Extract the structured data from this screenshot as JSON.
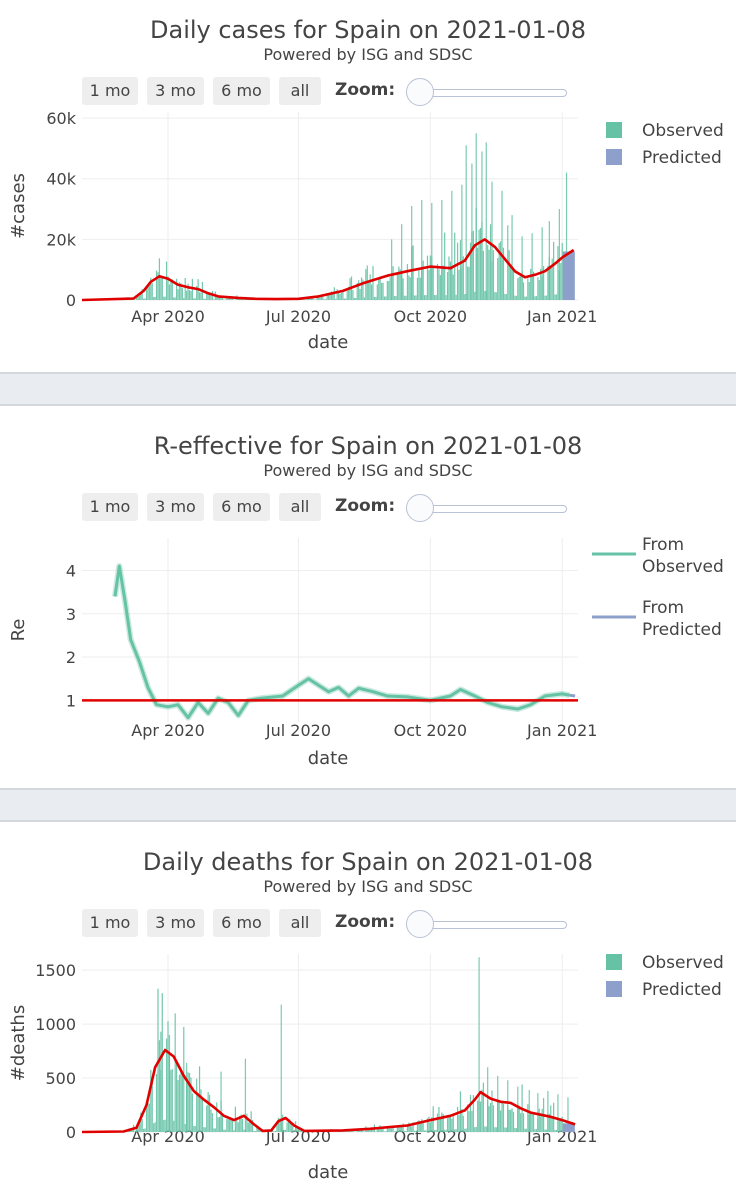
{
  "colors": {
    "observed": "#66c2a5",
    "predicted": "#8da0cb",
    "fit": "#e00000"
  },
  "range_buttons": [
    "1 mo",
    "3 mo",
    "6 mo",
    "all"
  ],
  "zoom_label": "Zoom:",
  "panels": [
    {
      "title": "Daily cases for Spain on 2021-01-08",
      "subtitle": "Powered by ISG and SDSC",
      "chart_data": {
        "type": "bar",
        "xlabel": "date",
        "ylabel": "#cases",
        "xlim": [
          "2020-02-01",
          "2021-01-12"
        ],
        "ylim": [
          0,
          62000
        ],
        "yticks": [
          0,
          20000,
          40000,
          60000
        ],
        "ytick_labels": [
          "0",
          "20k",
          "40k",
          "60k"
        ],
        "xticks": [
          "2020-04-01",
          "2020-07-01",
          "2020-10-01",
          "2021-01-01"
        ],
        "xtick_labels": [
          "Apr 2020",
          "Jul 2020",
          "Oct 2020",
          "Jan 2021"
        ],
        "legend": [
          "Observed",
          "Predicted"
        ],
        "legend_position": "right",
        "spikes": [
          [
            "2020-09-04",
            20000
          ],
          [
            "2020-09-11",
            25000
          ],
          [
            "2020-09-18",
            31000
          ],
          [
            "2020-09-25",
            33000
          ],
          [
            "2020-10-02",
            32000
          ],
          [
            "2020-10-09",
            33000
          ],
          [
            "2020-10-16",
            36000
          ],
          [
            "2020-10-23",
            38000
          ],
          [
            "2020-10-26",
            51000
          ],
          [
            "2020-10-30",
            45000
          ],
          [
            "2020-11-02",
            55000
          ],
          [
            "2020-11-06",
            49000
          ],
          [
            "2020-11-09",
            52000
          ],
          [
            "2020-11-13",
            39000
          ],
          [
            "2020-11-20",
            36000
          ],
          [
            "2020-11-27",
            28000
          ],
          [
            "2020-12-04",
            21000
          ],
          [
            "2020-12-11",
            22000
          ],
          [
            "2020-12-18",
            24000
          ],
          [
            "2020-12-23",
            26000
          ],
          [
            "2020-12-30",
            30000
          ],
          [
            "2021-01-04",
            42000
          ]
        ],
        "observed_curve": [
          [
            "2020-02-01",
            0
          ],
          [
            "2020-03-08",
            500
          ],
          [
            "2020-03-15",
            3000
          ],
          [
            "2020-03-20",
            6000
          ],
          [
            "2020-03-26",
            7800
          ],
          [
            "2020-04-01",
            7000
          ],
          [
            "2020-04-08",
            5000
          ],
          [
            "2020-04-15",
            4200
          ],
          [
            "2020-04-22",
            3600
          ],
          [
            "2020-04-29",
            2200
          ],
          [
            "2020-05-06",
            1200
          ],
          [
            "2020-05-20",
            700
          ],
          [
            "2020-06-01",
            400
          ],
          [
            "2020-06-15",
            300
          ],
          [
            "2020-07-01",
            400
          ],
          [
            "2020-07-15",
            1200
          ],
          [
            "2020-08-01",
            3000
          ],
          [
            "2020-08-15",
            5500
          ],
          [
            "2020-09-01",
            8000
          ],
          [
            "2020-09-15",
            9500
          ],
          [
            "2020-10-01",
            11000
          ],
          [
            "2020-10-15",
            10500
          ],
          [
            "2020-10-25",
            13000
          ],
          [
            "2020-11-01",
            18000
          ],
          [
            "2020-11-08",
            20000
          ],
          [
            "2020-11-15",
            17500
          ],
          [
            "2020-11-22",
            13500
          ],
          [
            "2020-11-29",
            9500
          ],
          [
            "2020-12-06",
            7500
          ],
          [
            "2020-12-13",
            8300
          ],
          [
            "2020-12-20",
            9500
          ],
          [
            "2020-12-27",
            12000
          ],
          [
            "2021-01-01",
            14000
          ]
        ],
        "predicted_curve": [
          [
            "2021-01-01",
            14000
          ],
          [
            "2021-01-09",
            16500
          ]
        ],
        "predicted_bars": {
          "from": "2021-01-02",
          "to": "2021-01-09",
          "value": 16000
        }
      }
    },
    {
      "title": "R-effective for Spain on 2021-01-08",
      "subtitle": "Powered by ISG and SDSC",
      "chart_data": {
        "type": "line",
        "xlabel": "date",
        "ylabel": "Re",
        "xlim": [
          "2020-02-01",
          "2021-01-12"
        ],
        "ylim": [
          0.5,
          4.75
        ],
        "yticks": [
          1,
          2,
          3,
          4
        ],
        "ytick_labels": [
          "1",
          "2",
          "3",
          "4"
        ],
        "xticks": [
          "2020-04-01",
          "2020-07-01",
          "2020-10-01",
          "2021-01-01"
        ],
        "xtick_labels": [
          "Apr 2020",
          "Jul 2020",
          "Oct 2020",
          "Jan 2021"
        ],
        "reference_line": 1,
        "legend": [
          "From Observed",
          "From Predicted"
        ],
        "legend_position": "right",
        "series": [
          {
            "name": "From Observed",
            "points": [
              [
                "2020-02-24",
                3.4
              ],
              [
                "2020-02-27",
                4.1
              ],
              [
                "2020-03-02",
                3.3
              ],
              [
                "2020-03-06",
                2.4
              ],
              [
                "2020-03-12",
                1.9
              ],
              [
                "2020-03-18",
                1.3
              ],
              [
                "2020-03-24",
                0.9
              ],
              [
                "2020-04-01",
                0.85
              ],
              [
                "2020-04-08",
                0.9
              ],
              [
                "2020-04-15",
                0.6
              ],
              [
                "2020-04-22",
                0.95
              ],
              [
                "2020-04-29",
                0.7
              ],
              [
                "2020-05-06",
                1.05
              ],
              [
                "2020-05-13",
                0.95
              ],
              [
                "2020-05-20",
                0.65
              ],
              [
                "2020-05-27",
                1.0
              ],
              [
                "2020-06-05",
                1.05
              ],
              [
                "2020-06-20",
                1.1
              ],
              [
                "2020-07-01",
                1.35
              ],
              [
                "2020-07-08",
                1.5
              ],
              [
                "2020-07-15",
                1.35
              ],
              [
                "2020-07-22",
                1.2
              ],
              [
                "2020-07-29",
                1.3
              ],
              [
                "2020-08-05",
                1.1
              ],
              [
                "2020-08-12",
                1.28
              ],
              [
                "2020-08-22",
                1.2
              ],
              [
                "2020-09-01",
                1.1
              ],
              [
                "2020-09-15",
                1.08
              ],
              [
                "2020-10-01",
                1.0
              ],
              [
                "2020-10-15",
                1.1
              ],
              [
                "2020-10-22",
                1.25
              ],
              [
                "2020-11-01",
                1.1
              ],
              [
                "2020-11-10",
                0.95
              ],
              [
                "2020-11-20",
                0.85
              ],
              [
                "2020-12-01",
                0.8
              ],
              [
                "2020-12-10",
                0.9
              ],
              [
                "2020-12-20",
                1.1
              ],
              [
                "2021-01-01",
                1.15
              ],
              [
                "2021-01-06",
                1.12
              ]
            ]
          },
          {
            "name": "From Predicted",
            "points": [
              [
                "2021-01-06",
                1.12
              ],
              [
                "2021-01-10",
                1.1
              ]
            ]
          }
        ]
      }
    },
    {
      "title": "Daily deaths for Spain on 2021-01-08",
      "subtitle": "Powered by ISG and SDSC",
      "chart_data": {
        "type": "bar",
        "xlabel": "date",
        "ylabel": "#deaths",
        "xlim": [
          "2020-02-01",
          "2021-01-12"
        ],
        "ylim": [
          0,
          1650
        ],
        "yticks": [
          0,
          500,
          1000,
          1500
        ],
        "ytick_labels": [
          "0",
          "500",
          "1000",
          "1500"
        ],
        "xticks": [
          "2020-04-01",
          "2020-07-01",
          "2020-10-01",
          "2021-01-01"
        ],
        "xtick_labels": [
          "Apr 2020",
          "Jul 2020",
          "Oct 2020",
          "Jan 2021"
        ],
        "legend": [
          "Observed",
          "Predicted"
        ],
        "legend_position": "right",
        "spikes": [
          [
            "2020-03-27",
            930
          ],
          [
            "2020-04-02",
            900
          ],
          [
            "2020-04-14",
            640
          ],
          [
            "2020-05-08",
            560
          ],
          [
            "2020-05-25",
            680
          ],
          [
            "2020-06-19",
            1180
          ],
          [
            "2020-11-04",
            1620
          ],
          [
            "2020-11-10",
            600
          ],
          [
            "2020-11-17",
            520
          ],
          [
            "2020-11-24",
            480
          ],
          [
            "2020-12-01",
            420
          ],
          [
            "2020-12-09",
            390
          ],
          [
            "2020-12-15",
            360
          ],
          [
            "2020-12-22",
            380
          ],
          [
            "2020-12-29",
            350
          ],
          [
            "2021-01-05",
            320
          ]
        ],
        "observed_curve": [
          [
            "2020-02-01",
            0
          ],
          [
            "2020-03-01",
            5
          ],
          [
            "2020-03-10",
            40
          ],
          [
            "2020-03-17",
            250
          ],
          [
            "2020-03-23",
            600
          ],
          [
            "2020-03-30",
            760
          ],
          [
            "2020-04-05",
            700
          ],
          [
            "2020-04-12",
            520
          ],
          [
            "2020-04-19",
            380
          ],
          [
            "2020-04-26",
            300
          ],
          [
            "2020-05-03",
            230
          ],
          [
            "2020-05-10",
            150
          ],
          [
            "2020-05-17",
            110
          ],
          [
            "2020-05-24",
            150
          ],
          [
            "2020-05-31",
            70
          ],
          [
            "2020-06-06",
            10
          ],
          [
            "2020-06-12",
            15
          ],
          [
            "2020-06-17",
            100
          ],
          [
            "2020-06-22",
            130
          ],
          [
            "2020-06-28",
            60
          ],
          [
            "2020-07-05",
            10
          ],
          [
            "2020-08-01",
            15
          ],
          [
            "2020-08-20",
            30
          ],
          [
            "2020-09-15",
            60
          ],
          [
            "2020-10-01",
            110
          ],
          [
            "2020-10-15",
            150
          ],
          [
            "2020-10-25",
            200
          ],
          [
            "2020-11-01",
            300
          ],
          [
            "2020-11-05",
            370
          ],
          [
            "2020-11-12",
            310
          ],
          [
            "2020-11-19",
            280
          ],
          [
            "2020-11-26",
            270
          ],
          [
            "2020-12-03",
            220
          ],
          [
            "2020-12-10",
            180
          ],
          [
            "2020-12-17",
            160
          ],
          [
            "2020-12-24",
            140
          ],
          [
            "2021-01-01",
            110
          ]
        ],
        "predicted_curve": [
          [
            "2021-01-01",
            110
          ],
          [
            "2021-01-10",
            70
          ]
        ],
        "predicted_bars": {
          "from": "2021-01-02",
          "to": "2021-01-09",
          "value": 80
        }
      }
    }
  ]
}
